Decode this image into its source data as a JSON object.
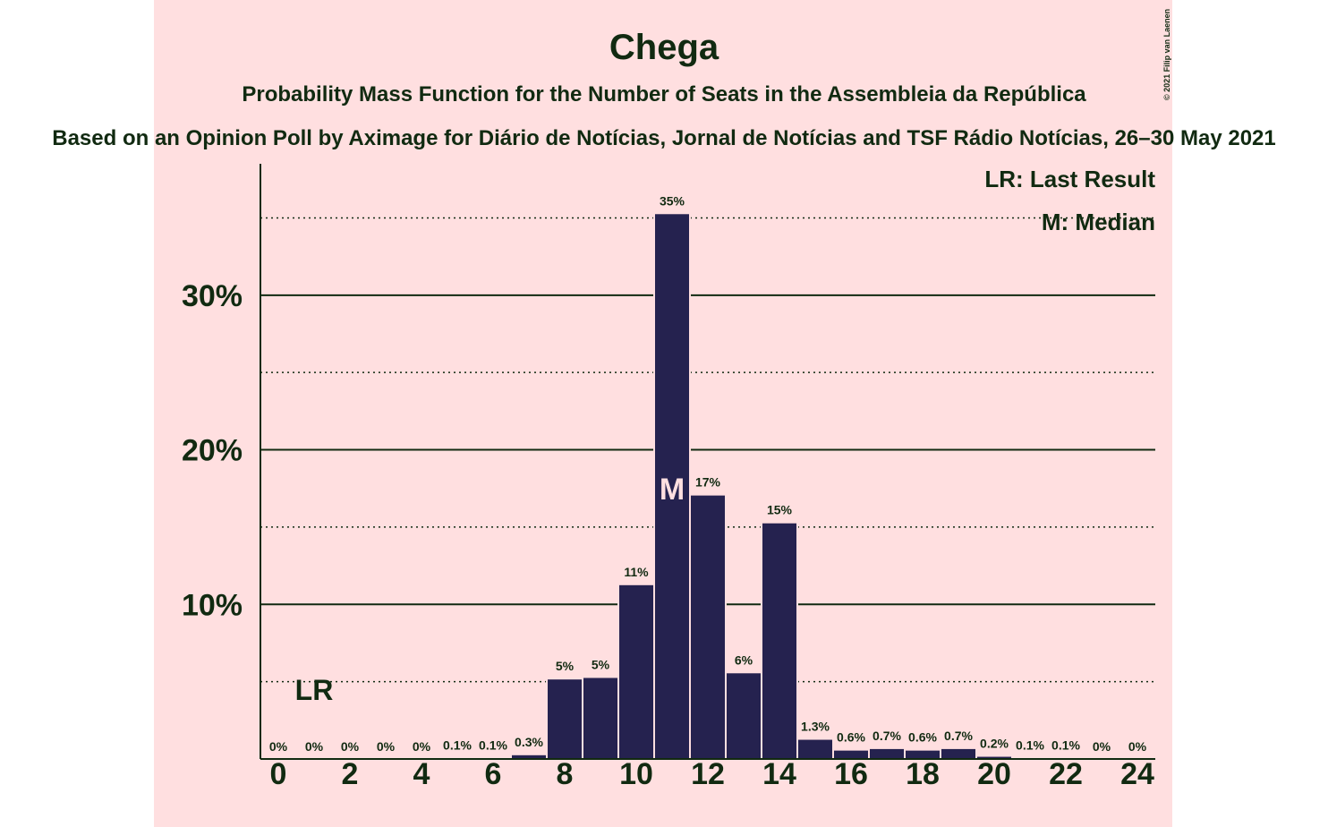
{
  "chart_data": {
    "type": "bar",
    "title": "Chega",
    "subtitle": "Probability Mass Function for the Number of Seats in the Assembleia da República",
    "caption": "Based on an Opinion Poll by Aximage for Diário de Notícias, Jornal de Notícias and TSF Rádio Notícias, 26–30 May 2021",
    "copyright": "© 2021 Filip van Laenen",
    "x": [
      0,
      1,
      2,
      3,
      4,
      5,
      6,
      7,
      8,
      9,
      10,
      11,
      12,
      13,
      14,
      15,
      16,
      17,
      18,
      19,
      20,
      21,
      22,
      23,
      24
    ],
    "values": [
      0,
      0,
      0,
      0,
      0,
      0.1,
      0.1,
      0.3,
      5.2,
      5.3,
      11.3,
      35.3,
      17.1,
      5.6,
      15.3,
      1.3,
      0.6,
      0.7,
      0.6,
      0.7,
      0.2,
      0.1,
      0.1,
      0,
      0
    ],
    "value_labels": [
      "0%",
      "0%",
      "0%",
      "0%",
      "0%",
      "0.1%",
      "0.1%",
      "0.3%",
      "5%",
      "5%",
      "11%",
      "35%",
      "17%",
      "6%",
      "15%",
      "1.3%",
      "0.6%",
      "0.7%",
      "0.6%",
      "0.7%",
      "0.2%",
      "0.1%",
      "0.1%",
      "0%",
      "0%"
    ],
    "color": "#25224f",
    "background": "#ffdfe0",
    "xlim": [
      -0.5,
      24.5
    ],
    "xticks": [
      0,
      2,
      4,
      6,
      8,
      10,
      12,
      14,
      16,
      18,
      20,
      22,
      24
    ],
    "ylim": [
      0,
      38.5
    ],
    "yticks": [
      {
        "value": 10,
        "label": "10%"
      },
      {
        "value": 20,
        "label": "20%"
      },
      {
        "value": 30,
        "label": "30%"
      }
    ],
    "minor_yticks": [
      5,
      15,
      25,
      35
    ],
    "grid": true,
    "last_result": {
      "x": 1,
      "label": "LR"
    },
    "median": {
      "x": 11,
      "label": "M"
    },
    "legend": [
      "LR: Last Result",
      "M: Median"
    ],
    "legend_position": "top-right"
  }
}
